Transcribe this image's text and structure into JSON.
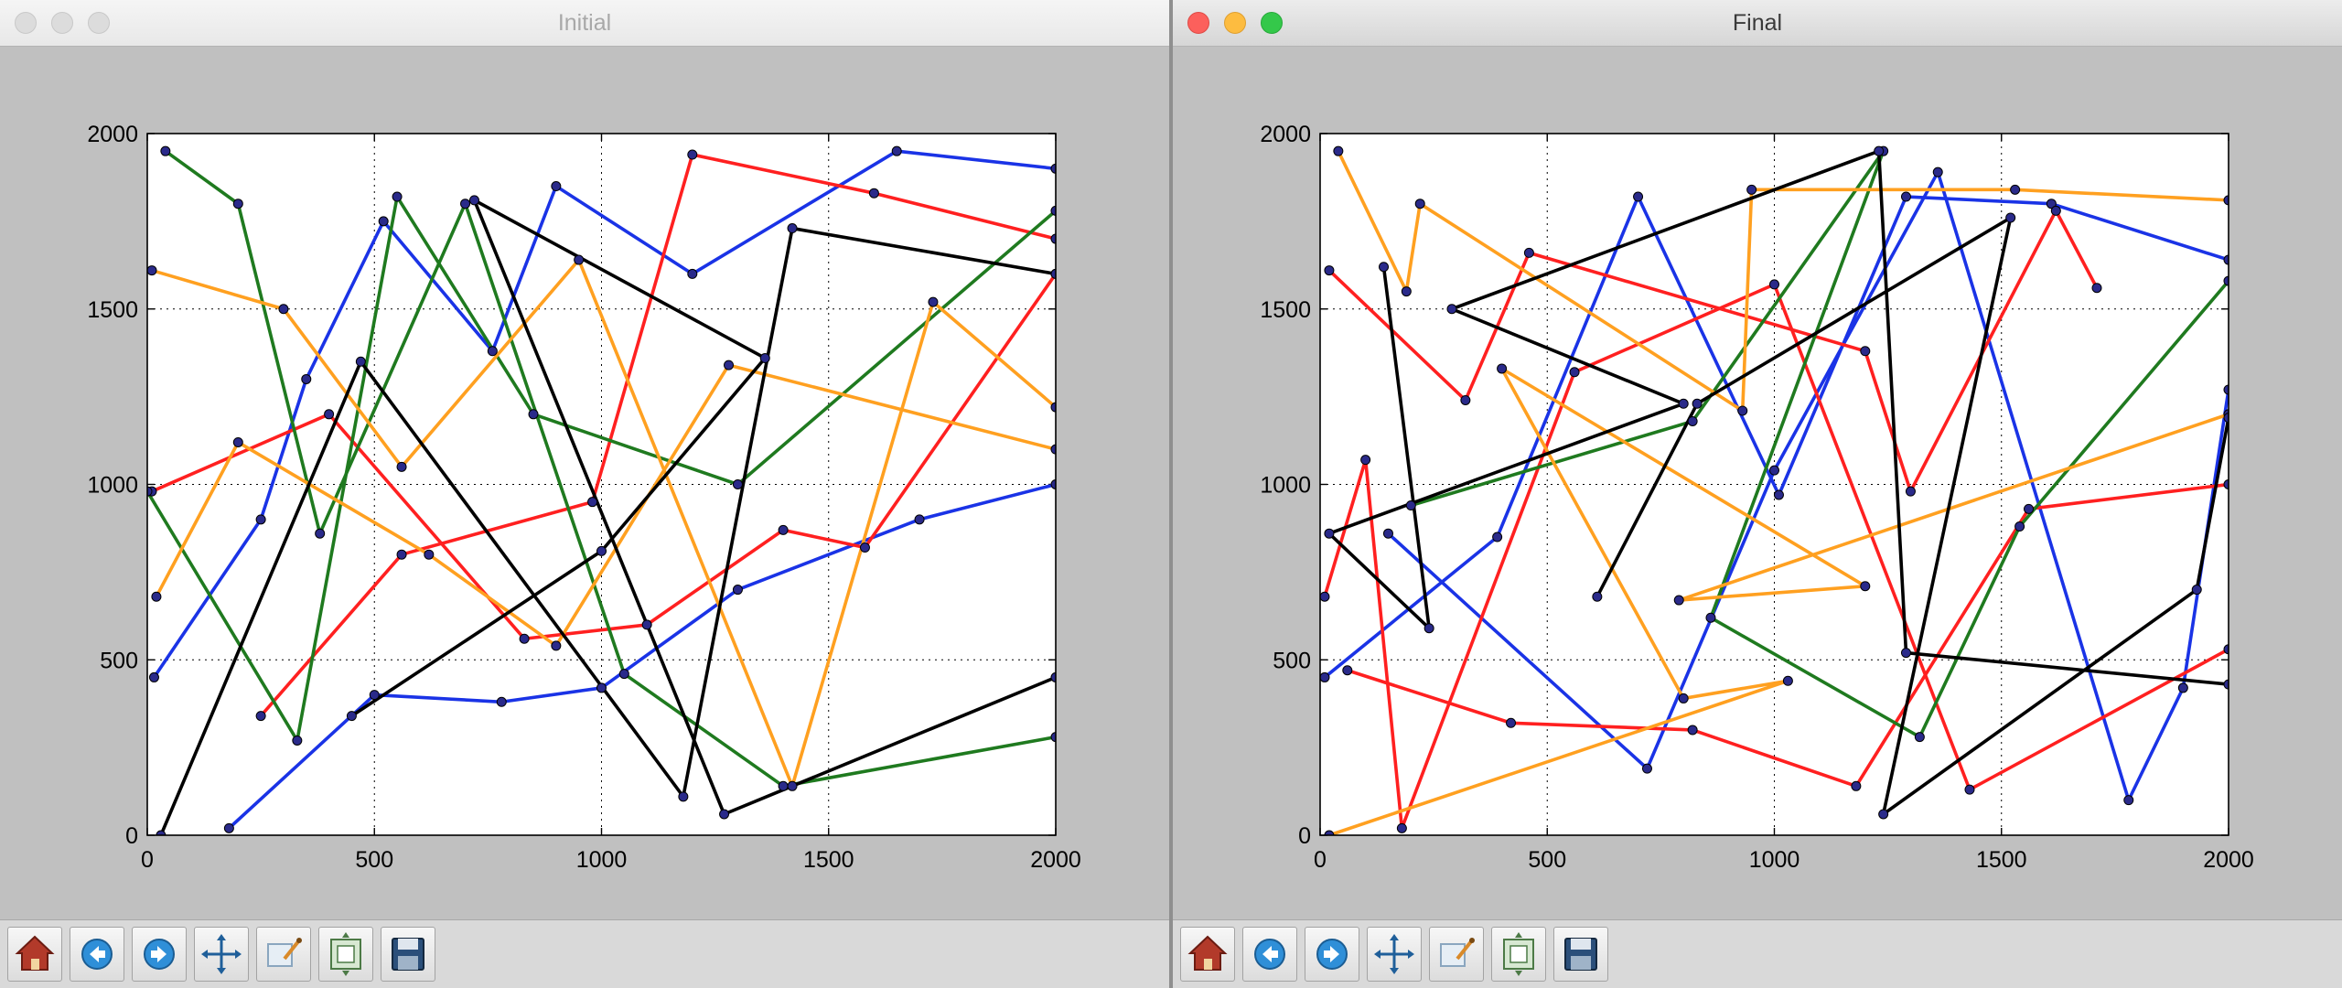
{
  "windows": [
    {
      "id": "left",
      "title": "Initial",
      "active": false,
      "plot": {
        "xlim": [
          0,
          2000
        ],
        "ylim": [
          0,
          2000
        ],
        "xticks": [
          "0",
          "500",
          "1000",
          "1500",
          "2000"
        ],
        "yticks": [
          "0",
          "500",
          "1000",
          "1500",
          "2000"
        ],
        "grid": true,
        "seed": 7,
        "routes": [
          {
            "color": "#1a33e6",
            "points": [
              [
                15,
                450
              ],
              [
                250,
                900
              ],
              [
                350,
                1300
              ],
              [
                520,
                1750
              ],
              [
                760,
                1380
              ],
              [
                900,
                1850
              ],
              [
                1200,
                1600
              ],
              [
                1650,
                1950
              ],
              [
                2000,
                1900
              ]
            ]
          },
          {
            "color": "#1a33e6",
            "points": [
              [
                180,
                20
              ],
              [
                500,
                400
              ],
              [
                780,
                380
              ],
              [
                1000,
                420
              ],
              [
                1300,
                700
              ],
              [
                1700,
                900
              ],
              [
                2000,
                1000
              ]
            ]
          },
          {
            "color": "#ff2020",
            "points": [
              [
                10,
                980
              ],
              [
                400,
                1200
              ],
              [
                830,
                560
              ],
              [
                1100,
                600
              ],
              [
                1400,
                870
              ],
              [
                1580,
                820
              ],
              [
                2000,
                1600
              ]
            ]
          },
          {
            "color": "#ff2020",
            "points": [
              [
                250,
                340
              ],
              [
                560,
                800
              ],
              [
                980,
                950
              ],
              [
                1200,
                1940
              ],
              [
                1600,
                1830
              ],
              [
                2000,
                1700
              ]
            ]
          },
          {
            "color": "#1f7a1f",
            "points": [
              [
                40,
                1950
              ],
              [
                200,
                1800
              ],
              [
                380,
                860
              ],
              [
                700,
                1800
              ],
              [
                1050,
                460
              ],
              [
                1400,
                140
              ],
              [
                2000,
                280
              ]
            ]
          },
          {
            "color": "#1f7a1f",
            "points": [
              [
                0,
                980
              ],
              [
                330,
                270
              ],
              [
                550,
                1820
              ],
              [
                850,
                1200
              ],
              [
                1300,
                1000
              ],
              [
                2000,
                1780
              ]
            ]
          },
          {
            "color": "#ffa020",
            "points": [
              [
                10,
                1610
              ],
              [
                300,
                1500
              ],
              [
                560,
                1050
              ],
              [
                950,
                1640
              ],
              [
                1420,
                140
              ],
              [
                1730,
                1520
              ],
              [
                2000,
                1220
              ]
            ]
          },
          {
            "color": "#ffa020",
            "points": [
              [
                20,
                680
              ],
              [
                200,
                1120
              ],
              [
                620,
                800
              ],
              [
                900,
                540
              ],
              [
                1280,
                1340
              ],
              [
                2000,
                1100
              ]
            ]
          },
          {
            "color": "#000000",
            "points": [
              [
                30,
                0
              ],
              [
                470,
                1350
              ],
              [
                1180,
                110
              ],
              [
                1420,
                1730
              ],
              [
                2000,
                1600
              ]
            ]
          },
          {
            "color": "#000000",
            "points": [
              [
                450,
                340
              ],
              [
                1000,
                810
              ],
              [
                1360,
                1360
              ],
              [
                720,
                1810
              ],
              [
                1270,
                60
              ],
              [
                2000,
                450
              ]
            ]
          }
        ]
      }
    },
    {
      "id": "right",
      "title": "Final",
      "active": true,
      "plot": {
        "xlim": [
          0,
          2000
        ],
        "ylim": [
          0,
          2000
        ],
        "xticks": [
          "0",
          "500",
          "1000",
          "1500",
          "2000"
        ],
        "yticks": [
          "0",
          "500",
          "1000",
          "1500",
          "2000"
        ],
        "grid": true,
        "seed": 23,
        "routes": [
          {
            "color": "#1a33e6",
            "points": [
              [
                10,
                450
              ],
              [
                390,
                850
              ],
              [
                700,
                1820
              ],
              [
                1010,
                970
              ],
              [
                1290,
                1820
              ],
              [
                1610,
                1800
              ],
              [
                2000,
                1640
              ]
            ]
          },
          {
            "color": "#1a33e6",
            "points": [
              [
                150,
                860
              ],
              [
                720,
                190
              ],
              [
                1000,
                1040
              ],
              [
                1360,
                1890
              ],
              [
                1780,
                100
              ],
              [
                1900,
                420
              ],
              [
                2000,
                1270
              ]
            ]
          },
          {
            "color": "#ff2020",
            "points": [
              [
                20,
                1610
              ],
              [
                320,
                1240
              ],
              [
                460,
                1660
              ],
              [
                1200,
                1380
              ],
              [
                1300,
                980
              ],
              [
                1620,
                1780
              ],
              [
                1710,
                1560
              ]
            ]
          },
          {
            "color": "#ff2020",
            "points": [
              [
                10,
                680
              ],
              [
                100,
                1070
              ],
              [
                180,
                20
              ],
              [
                560,
                1320
              ],
              [
                1000,
                1570
              ],
              [
                1430,
                130
              ],
              [
                2000,
                530
              ]
            ]
          },
          {
            "color": "#ff2020",
            "points": [
              [
                60,
                470
              ],
              [
                420,
                320
              ],
              [
                820,
                300
              ],
              [
                1180,
                140
              ],
              [
                1560,
                930
              ],
              [
                2000,
                1000
              ]
            ]
          },
          {
            "color": "#1f7a1f",
            "points": [
              [
                200,
                940
              ],
              [
                820,
                1180
              ],
              [
                1240,
                1950
              ],
              [
                860,
                620
              ],
              [
                1320,
                280
              ],
              [
                1540,
                880
              ],
              [
                2000,
                1580
              ]
            ]
          },
          {
            "color": "#ffa020",
            "points": [
              [
                40,
                1950
              ],
              [
                190,
                1550
              ],
              [
                220,
                1800
              ],
              [
                930,
                1210
              ],
              [
                950,
                1840
              ],
              [
                1530,
                1840
              ],
              [
                2000,
                1810
              ]
            ]
          },
          {
            "color": "#ffa020",
            "points": [
              [
                20,
                0
              ],
              [
                1030,
                440
              ],
              [
                800,
                390
              ],
              [
                400,
                1330
              ],
              [
                1200,
                710
              ],
              [
                790,
                670
              ],
              [
                2000,
                1200
              ]
            ]
          },
          {
            "color": "#000000",
            "points": [
              [
                140,
                1620
              ],
              [
                240,
                590
              ],
              [
                20,
                860
              ],
              [
                800,
                1230
              ],
              [
                290,
                1500
              ],
              [
                1230,
                1950
              ],
              [
                1290,
                520
              ],
              [
                2000,
                430
              ]
            ]
          },
          {
            "color": "#000000",
            "points": [
              [
                610,
                680
              ],
              [
                830,
                1230
              ],
              [
                1520,
                1760
              ],
              [
                1240,
                60
              ],
              [
                1930,
                700
              ],
              [
                2000,
                1190
              ]
            ]
          }
        ]
      }
    }
  ],
  "toolbar": {
    "tools": [
      {
        "icon": "home-icon"
      },
      {
        "icon": "back-arrow-icon"
      },
      {
        "icon": "forward-arrow-icon"
      },
      {
        "icon": "pan-icon"
      },
      {
        "icon": "zoom-icon"
      },
      {
        "icon": "subplots-icon"
      },
      {
        "icon": "save-icon"
      }
    ]
  }
}
